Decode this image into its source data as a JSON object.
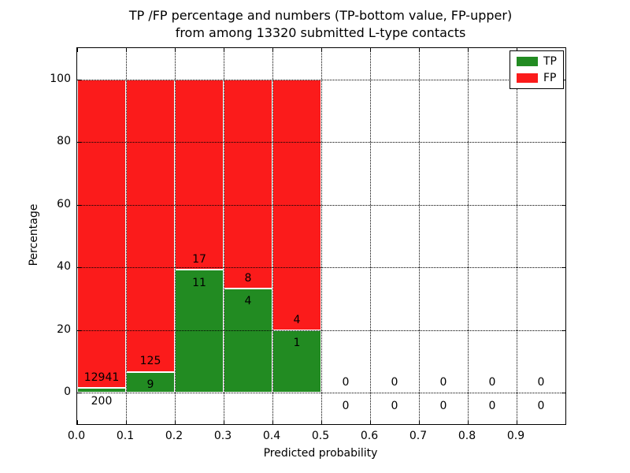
{
  "title": {
    "line1": "TP /FP percentage and numbers (TP-bottom value, FP-upper)",
    "line2": "from among 13320 submitted L-type contacts"
  },
  "axes": {
    "xlabel": "Predicted probability",
    "ylabel": "Percentage",
    "x_tick_labels": [
      "0.0",
      "0.1",
      "0.2",
      "0.3",
      "0.4",
      "0.5",
      "0.6",
      "0.7",
      "0.8",
      "0.9"
    ],
    "x_tick_values": [
      0.0,
      0.1,
      0.2,
      0.3,
      0.4,
      0.5,
      0.6,
      0.7,
      0.8,
      0.9
    ],
    "y_tick_labels": [
      "0",
      "20",
      "40",
      "60",
      "80",
      "100"
    ],
    "y_tick_values": [
      0,
      20,
      40,
      60,
      80,
      100
    ],
    "xlim": [
      0.0,
      1.0
    ],
    "ylim": [
      -10,
      110
    ],
    "grid": "dotted"
  },
  "legend": {
    "position": "upper-right",
    "items": [
      {
        "label": "TP",
        "color": "#228B22"
      },
      {
        "label": "FP",
        "color": "#FB1B1B"
      }
    ]
  },
  "chart_data": {
    "type": "bar",
    "stacked": true,
    "n_total": 13320,
    "bin_width": 0.1,
    "bin_edges": [
      0.0,
      0.1,
      0.2,
      0.3,
      0.4,
      0.5,
      0.6,
      0.7,
      0.8,
      0.9,
      1.0
    ],
    "bin_centers": [
      0.05,
      0.15,
      0.25,
      0.35,
      0.45,
      0.55,
      0.65,
      0.75,
      0.85,
      0.95
    ],
    "bar_total_percent": 100,
    "series": [
      {
        "name": "TP",
        "color": "#228B22",
        "counts": [
          200,
          9,
          11,
          4,
          1,
          0,
          0,
          0,
          0,
          0
        ],
        "percent": [
          1.52,
          6.72,
          39.29,
          33.33,
          20.0,
          0,
          0,
          0,
          0,
          0
        ]
      },
      {
        "name": "FP",
        "color": "#FB1B1B",
        "counts": [
          12941,
          125,
          17,
          8,
          4,
          0,
          0,
          0,
          0,
          0
        ],
        "percent": [
          98.48,
          93.28,
          60.71,
          66.67,
          80.0,
          0,
          0,
          0,
          0,
          0
        ]
      }
    ]
  }
}
